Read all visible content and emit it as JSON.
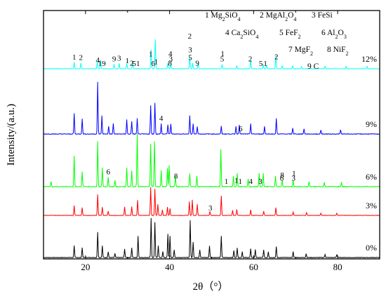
{
  "chart_data": {
    "type": "line",
    "xlabel": "2θ（°）",
    "ylabel": "Intensity/(a.u.)",
    "xlim": [
      10,
      90
    ],
    "x_ticks": [
      20,
      40,
      60,
      80
    ],
    "grid": false,
    "legend": [
      {
        "id": "1",
        "text": "Mg₂SiO₄"
      },
      {
        "id": "2",
        "text": "MgAl₂O₄"
      },
      {
        "id": "3",
        "text": "FeSi"
      },
      {
        "id": "4",
        "text": "Ca₂SiO₄"
      },
      {
        "id": "5",
        "text": "FeF₂"
      },
      {
        "id": "6",
        "text": "Al₂O₃"
      },
      {
        "id": "7",
        "text": "MgF₂"
      },
      {
        "id": "8",
        "text": "NiF₂"
      },
      {
        "id": "9",
        "text": "C"
      }
    ],
    "series": [
      {
        "name": "0%",
        "color": "#000000",
        "peaks": [
          [
            17.3,
            0.3
          ],
          [
            19.2,
            0.25
          ],
          [
            22.9,
            0.65
          ],
          [
            24.0,
            0.3
          ],
          [
            25.4,
            0.15
          ],
          [
            27.0,
            0.1
          ],
          [
            29.3,
            0.22
          ],
          [
            31.0,
            0.25
          ],
          [
            32.5,
            0.55
          ],
          [
            35.6,
            1.0
          ],
          [
            36.5,
            0.9
          ],
          [
            37.3,
            0.3
          ],
          [
            38.4,
            0.15
          ],
          [
            39.6,
            0.6
          ],
          [
            40.1,
            0.55
          ],
          [
            41.1,
            0.2
          ],
          [
            44.9,
            0.95
          ],
          [
            45.6,
            0.4
          ],
          [
            47.2,
            0.2
          ],
          [
            49.5,
            0.3
          ],
          [
            52.3,
            0.55
          ],
          [
            55.3,
            0.18
          ],
          [
            56.1,
            0.25
          ],
          [
            57.3,
            0.15
          ],
          [
            59.3,
            0.22
          ],
          [
            60.4,
            0.2
          ],
          [
            62.4,
            0.2
          ],
          [
            63.5,
            0.15
          ],
          [
            65.4,
            0.28
          ],
          [
            69.4,
            0.15
          ],
          [
            72.5,
            0.1
          ],
          [
            77.0,
            0.08
          ],
          [
            79.8,
            0.08
          ]
        ]
      },
      {
        "name": "3%",
        "color": "#ff0000",
        "peaks": [
          [
            17.3,
            0.35
          ],
          [
            19.2,
            0.28
          ],
          [
            22.9,
            0.75
          ],
          [
            24.0,
            0.3
          ],
          [
            25.4,
            0.15
          ],
          [
            29.3,
            0.3
          ],
          [
            31.0,
            0.32
          ],
          [
            32.4,
            0.55
          ],
          [
            35.5,
            1.0
          ],
          [
            36.5,
            0.95
          ],
          [
            37.2,
            0.4
          ],
          [
            38.3,
            0.2
          ],
          [
            39.5,
            0.3
          ],
          [
            40.1,
            0.25
          ],
          [
            44.7,
            0.5
          ],
          [
            45.4,
            0.55
          ],
          [
            46.6,
            0.4
          ],
          [
            49.6,
            0.15
          ],
          [
            52.3,
            0.7
          ],
          [
            55.0,
            0.18
          ],
          [
            56.0,
            0.22
          ],
          [
            59.3,
            0.2
          ],
          [
            62.4,
            0.15
          ],
          [
            65.3,
            0.28
          ],
          [
            69.4,
            0.12
          ],
          [
            72.6,
            0.1
          ],
          [
            76.0,
            0.08
          ],
          [
            79.8,
            0.08
          ]
        ]
      },
      {
        "name": "6%",
        "color": "#00ff00",
        "peaks": [
          [
            11.8,
            0.1
          ],
          [
            17.3,
            0.58
          ],
          [
            19.2,
            0.28
          ],
          [
            22.9,
            0.85
          ],
          [
            24.0,
            0.35
          ],
          [
            25.4,
            0.18
          ],
          [
            27.0,
            0.12
          ],
          [
            29.8,
            0.35
          ],
          [
            31.0,
            0.3
          ],
          [
            32.3,
            1.0
          ],
          [
            35.5,
            0.8
          ],
          [
            36.4,
            0.85
          ],
          [
            38.0,
            0.3
          ],
          [
            39.5,
            0.35
          ],
          [
            39.9,
            0.4
          ],
          [
            41.4,
            0.2
          ],
          [
            44.8,
            0.25
          ],
          [
            46.5,
            0.2
          ],
          [
            52.2,
            0.7
          ],
          [
            55.2,
            0.2
          ],
          [
            56.1,
            0.25
          ],
          [
            58.7,
            0.15
          ],
          [
            61.3,
            0.25
          ],
          [
            62.3,
            0.25
          ],
          [
            65.2,
            0.2
          ],
          [
            66.8,
            0.12
          ],
          [
            69.4,
            0.12
          ],
          [
            73.2,
            0.1
          ],
          [
            76.8,
            0.08
          ],
          [
            80.9,
            0.08
          ]
        ]
      },
      {
        "name": "9%",
        "color": "#0000ff",
        "peaks": [
          [
            17.3,
            0.4
          ],
          [
            19.2,
            0.3
          ],
          [
            22.9,
            1.0
          ],
          [
            23.9,
            0.35
          ],
          [
            25.5,
            0.15
          ],
          [
            26.6,
            0.2
          ],
          [
            29.8,
            0.28
          ],
          [
            31.0,
            0.25
          ],
          [
            32.3,
            0.3
          ],
          [
            35.5,
            0.55
          ],
          [
            36.5,
            0.6
          ],
          [
            38.0,
            0.2
          ],
          [
            39.6,
            0.18
          ],
          [
            40.3,
            0.2
          ],
          [
            44.8,
            0.35
          ],
          [
            45.6,
            0.2
          ],
          [
            46.6,
            0.15
          ],
          [
            52.3,
            0.15
          ],
          [
            55.8,
            0.15
          ],
          [
            56.6,
            0.18
          ],
          [
            59.3,
            0.2
          ],
          [
            62.6,
            0.15
          ],
          [
            65.4,
            0.3
          ],
          [
            69.3,
            0.12
          ],
          [
            72.0,
            0.1
          ],
          [
            76.0,
            0.08
          ],
          [
            80.7,
            0.08
          ]
        ]
      },
      {
        "name": "12%",
        "color": "#00ffff",
        "peaks": [
          [
            17.3,
            0.22
          ],
          [
            18.9,
            0.2
          ],
          [
            22.8,
            0.25
          ],
          [
            23.6,
            0.3
          ],
          [
            26.8,
            0.15
          ],
          [
            28.0,
            0.18
          ],
          [
            29.8,
            0.18
          ],
          [
            31.2,
            0.25
          ],
          [
            35.6,
            0.65
          ],
          [
            36.6,
            1.0
          ],
          [
            39.6,
            0.2
          ],
          [
            40.3,
            0.15
          ],
          [
            44.8,
            0.4
          ],
          [
            45.5,
            0.2
          ],
          [
            46.8,
            0.18
          ],
          [
            52.5,
            0.15
          ],
          [
            56.0,
            0.1
          ],
          [
            59.3,
            0.3
          ],
          [
            62.3,
            0.15
          ],
          [
            63.1,
            0.12
          ],
          [
            65.3,
            0.45
          ],
          [
            66.8,
            0.1
          ],
          [
            69.3,
            0.1
          ],
          [
            71.4,
            0.08
          ],
          [
            77.0,
            0.08
          ],
          [
            82.0,
            0.08
          ],
          [
            87.0,
            0.08
          ]
        ]
      }
    ],
    "peak_labels": [
      {
        "series": "12%",
        "items": [
          [
            17.3,
            "1"
          ],
          [
            18.9,
            "2"
          ],
          [
            22.9,
            "4"
          ],
          [
            23.9,
            "19"
          ],
          [
            26.8,
            "9"
          ],
          [
            28.0,
            "3"
          ],
          [
            29.9,
            "1"
          ],
          [
            31.0,
            "2"
          ],
          [
            31.6,
            "5"
          ],
          [
            32.5,
            "1"
          ],
          [
            35.5,
            "1"
          ],
          [
            36.1,
            "6"
          ],
          [
            36.8,
            "1"
          ],
          [
            40.1,
            "8"
          ],
          [
            40.2,
            "4"
          ],
          [
            40.3,
            "3"
          ],
          [
            44.9,
            "5"
          ],
          [
            44.9,
            "3"
          ],
          [
            44.8,
            "2"
          ],
          [
            46.6,
            "9"
          ],
          [
            52.5,
            "5"
          ],
          [
            52.6,
            "1"
          ],
          [
            59.2,
            "2"
          ],
          [
            61.7,
            "5"
          ],
          [
            62.8,
            "1"
          ],
          [
            65.4,
            "2"
          ]
        ]
      },
      {
        "series": "9%",
        "items": [
          [
            38.0,
            "4"
          ],
          [
            56.9,
            "6"
          ]
        ]
      },
      {
        "series": "6%",
        "items": [
          [
            25.4,
            "6"
          ],
          [
            41.5,
            "8"
          ],
          [
            53.5,
            "1"
          ],
          [
            55.9,
            "1"
          ],
          [
            56.8,
            "1"
          ],
          [
            59.3,
            "4"
          ],
          [
            61.6,
            "3"
          ],
          [
            66.8,
            "8"
          ],
          [
            66.7,
            "6"
          ],
          [
            69.5,
            "3"
          ],
          [
            69.6,
            "1"
          ]
        ]
      },
      {
        "series": "3%",
        "items": [
          [
            49.7,
            "3"
          ]
        ]
      }
    ]
  }
}
